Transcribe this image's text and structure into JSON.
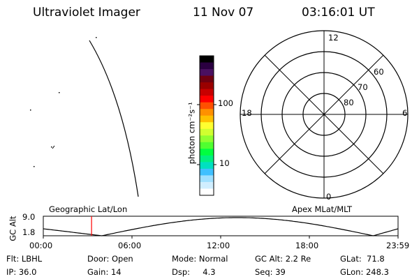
{
  "header": {
    "title": "Ultraviolet Imager",
    "date": "11 Nov 07",
    "time": "03:16:01 UT"
  },
  "colorbar": {
    "unit_label": "photon cm⁻²s⁻¹",
    "tick_labels": [
      "100",
      "10"
    ],
    "colors": [
      "#000000",
      "#2a0040",
      "#4a1060",
      "#700010",
      "#9a0000",
      "#c80000",
      "#ff0000",
      "#ff5000",
      "#ff9000",
      "#ffc000",
      "#ffff30",
      "#d0ff30",
      "#90ff30",
      "#50ff30",
      "#00ff40",
      "#00f080",
      "#00e0c0",
      "#40c0ff",
      "#a0e0ff",
      "#d0eeff",
      "#ffffff"
    ]
  },
  "polar_plot": {
    "mlt_labels": {
      "top": "12",
      "left": "18",
      "right": "6",
      "bottom": "0"
    },
    "lat_labels": [
      "60",
      "70",
      "80"
    ]
  },
  "orbit_plot": {
    "left_title": "Geographic Lat/Lon",
    "right_title": "Apex MLat/MLT",
    "y_axis_label": "GC Alt",
    "y_ticks": [
      "9.0",
      "1.8"
    ],
    "x_ticks": [
      "00:00",
      "06:00",
      "12:00",
      "18:00",
      "23:59"
    ],
    "current_time_fraction": 0.1361,
    "marker_color": "#ff0000"
  },
  "status": {
    "row1": {
      "filter": "Flt: LBHL",
      "door": "Door: Open",
      "mode": "Mode: Normal",
      "gc_alt": "GC Alt: 2.2 Re",
      "glat": "GLat:  71.8"
    },
    "row2": {
      "ip": "IP: 36.0",
      "gain": "Gain: 14",
      "dsp": "Dsp:     4.3",
      "seq": "Seq: 39",
      "glon": "GLon: 248.3"
    }
  }
}
